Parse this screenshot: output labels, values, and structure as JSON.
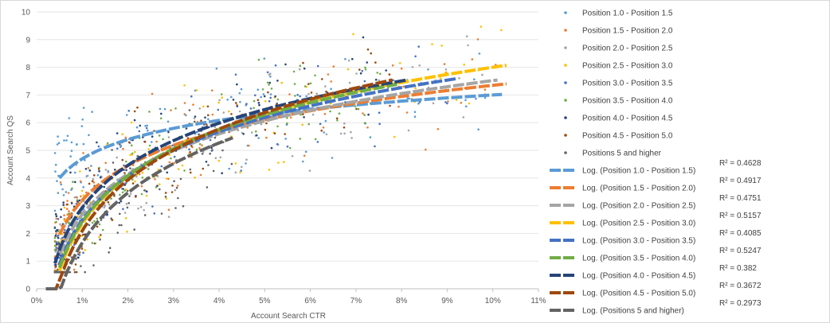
{
  "chart_data": {
    "type": "scatter",
    "xlabel": "Account Search CTR",
    "ylabel": "Account Search QS",
    "xlim": [
      0,
      0.11
    ],
    "ylim": [
      0,
      10
    ],
    "x_ticks": [
      "0%",
      "1%",
      "2%",
      "3%",
      "4%",
      "5%",
      "6%",
      "7%",
      "8%",
      "9%",
      "10%",
      "11%"
    ],
    "y_ticks": [
      "0",
      "1",
      "2",
      "3",
      "4",
      "5",
      "6",
      "7",
      "8",
      "9",
      "10"
    ],
    "grid": "horizontal",
    "legend_position": "right",
    "series": [
      {
        "name": "Position 1.0 - Position 1.5",
        "color": "#5b9bd5",
        "trend": {
          "label": "Log. (Position 1.0 - Position 1.5)",
          "a": 1.0,
          "b": 7.0,
          "x_start": 0.005,
          "x_end": 0.102,
          "r2": "R² = 0.4628"
        }
      },
      {
        "name": "Position 1.5 - Position 2.0",
        "color": "#ed7d31",
        "trend": {
          "label": "Log. (Position 1.5 - Position 2.0)",
          "a": 1.8,
          "b": 7.35,
          "x_start": 0.005,
          "x_end": 0.103,
          "r2": "R² = 0.4917"
        }
      },
      {
        "name": "Position 2.0 - Position 2.5",
        "color": "#a5a5a5",
        "trend": {
          "label": "Log. (Position 2.0 - Position 2.5)",
          "a": 2.1,
          "b": 7.52,
          "x_start": 0.005,
          "x_end": 0.101,
          "r2": "R² = 0.4751"
        }
      },
      {
        "name": "Position 2.5 - Position 3.0",
        "color": "#ffc000",
        "trend": {
          "label": "Log. (Position 2.5 - Position 3.0)",
          "a": 2.45,
          "b": 8.0,
          "x_start": 0.005,
          "x_end": 0.103,
          "r2": "R² = 0.5157"
        }
      },
      {
        "name": "Position 3.0 - Position 3.5",
        "color": "#4472c4",
        "trend": {
          "label": "Log. (Position 3.0 - Position 3.5)",
          "a": 2.3,
          "b": 7.78,
          "x_start": 0.005,
          "x_end": 0.092,
          "r2": "R² = 0.4085"
        }
      },
      {
        "name": "Position 3.5 - Position 4.0",
        "color": "#70ad47",
        "trend": {
          "label": "Log. (Position 3.5 - Position 4.0)",
          "a": 2.4,
          "b": 7.95,
          "x_start": 0.005,
          "x_end": 0.079,
          "r2": "R² = 0.5247"
        }
      },
      {
        "name": "Position 4.0 - Position 4.5",
        "color": "#264478",
        "trend": {
          "label": "Log. (Position 4.0 - Position 4.5)",
          "a": 2.2,
          "b": 8.0,
          "x_start": 0.004,
          "x_end": 0.081,
          "r2": "R² = 0.382"
        }
      },
      {
        "name": "Position 4.5 - Position 5.0",
        "color": "#9e480e",
        "trend": {
          "label": "Log. (Position 4.5 - Position 5.0)",
          "a": 2.65,
          "b": 8.2,
          "x_start": 0.003,
          "x_end": 0.078,
          "r2": "R² = 0.3672"
        }
      },
      {
        "name": "Positions 5 and higher",
        "color": "#636363",
        "trend": {
          "label": "Log. (Positions 5 and higher)",
          "a": 2.6,
          "b": 7.65,
          "x_start": 0.002,
          "x_end": 0.043,
          "r2": "R² = 0.2973"
        }
      }
    ]
  }
}
